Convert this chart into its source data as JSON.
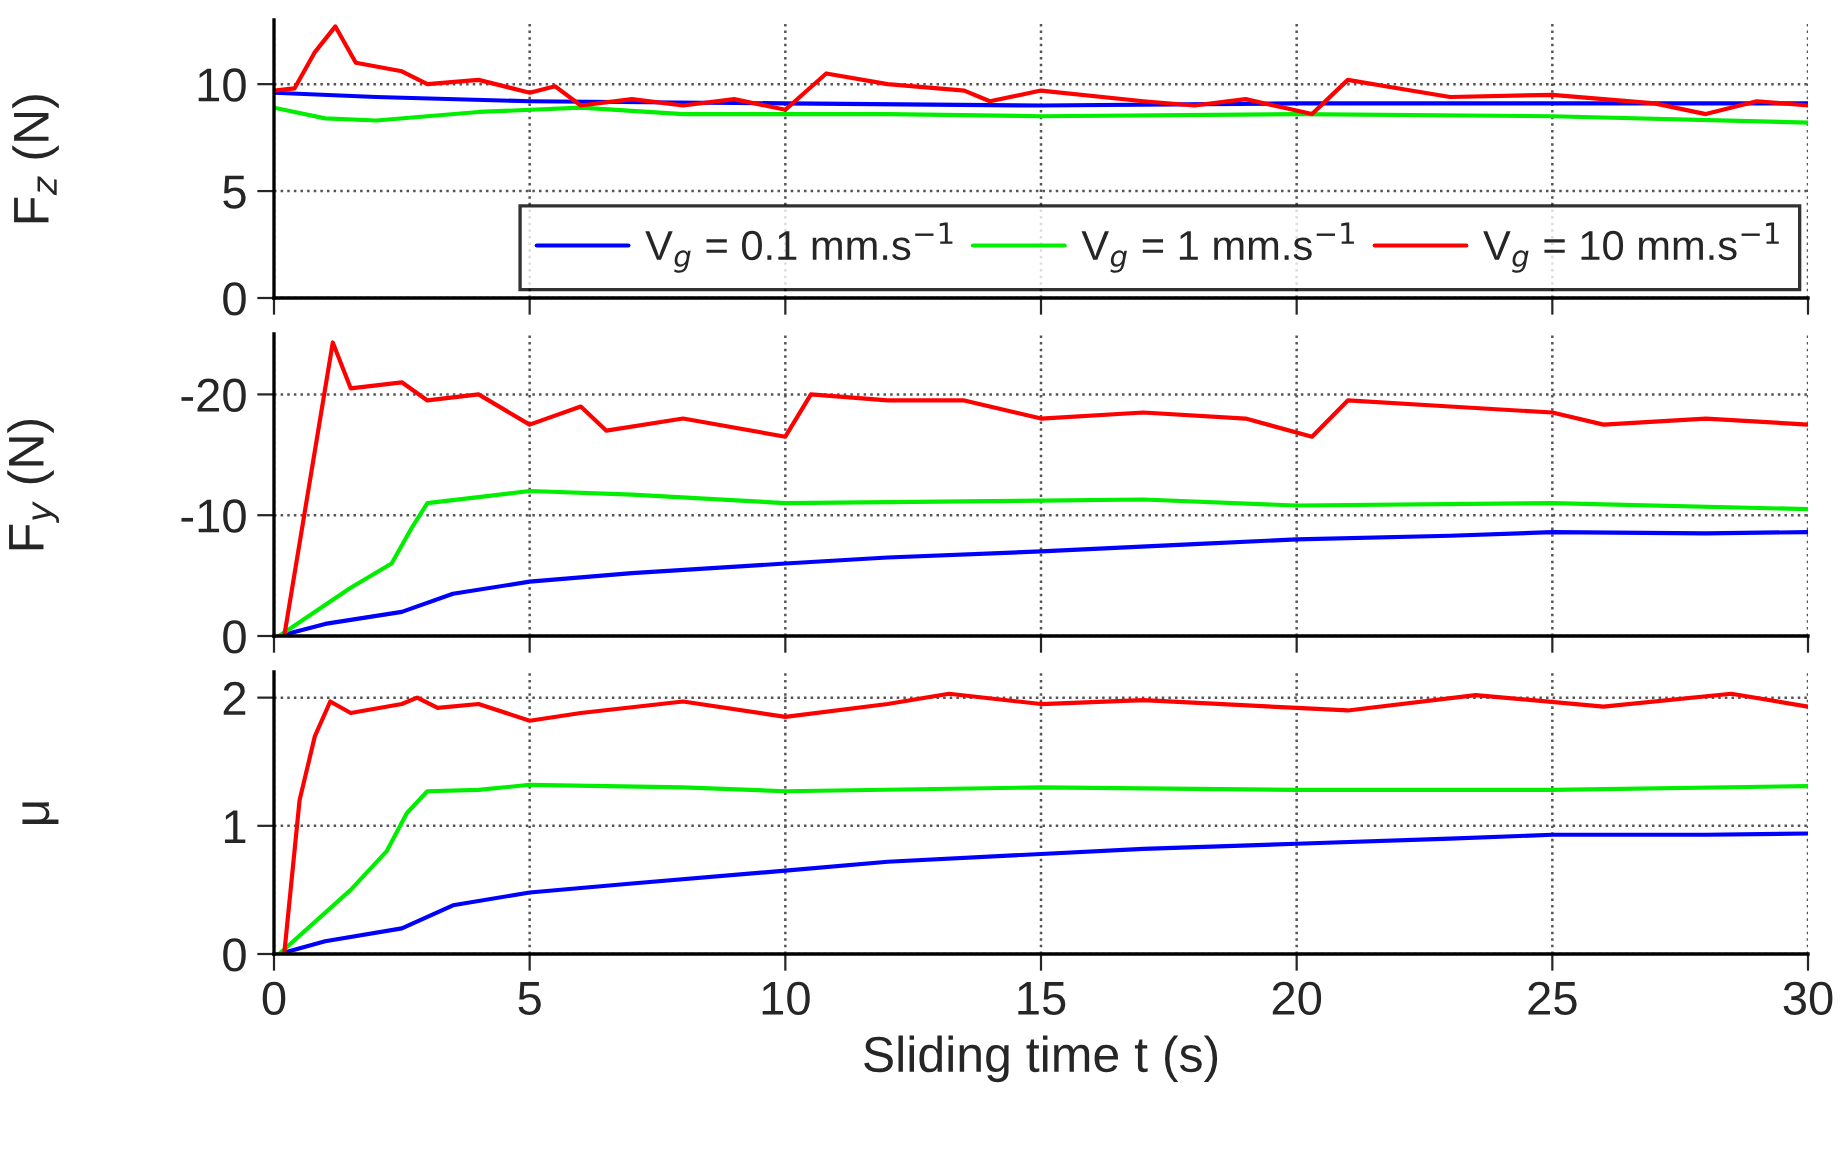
{
  "chart_data": [
    {
      "type": "line",
      "ylabel": "F$_{z}$ (N)",
      "xlim": [
        0,
        30
      ],
      "xticks": [
        0,
        5,
        10,
        15,
        20,
        25,
        30
      ],
      "ylim": [
        0,
        13
      ],
      "yticks": [
        0,
        5,
        10
      ],
      "grid": true,
      "legend": "bottom right",
      "tick_labels": "y",
      "line_style": "solid",
      "marker": "none",
      "series": [
        {
          "name": "V$_{g}$ = 0.1 mm.s$^{−1}$",
          "color": "#0000ff",
          "x": [
            0,
            2,
            5,
            10,
            15,
            20,
            25,
            30
          ],
          "values": [
            9.6,
            9.4,
            9.2,
            9.1,
            9.0,
            9.1,
            9.1,
            9.1
          ]
        },
        {
          "name": "V$_{g}$ = 1 mm.s$^{−1}$",
          "color": "#00ee00",
          "x": [
            0,
            1,
            2,
            4,
            6,
            8,
            12,
            15,
            20,
            25,
            30
          ],
          "values": [
            8.9,
            8.4,
            8.3,
            8.7,
            8.9,
            8.6,
            8.6,
            8.5,
            8.6,
            8.5,
            8.2
          ]
        },
        {
          "name": "V$_{g}$ = 10 mm.s$^{−1}$",
          "color": "#ff0000",
          "x": [
            0,
            0.4,
            0.8,
            1.2,
            1.6,
            2.5,
            3,
            4,
            5,
            5.5,
            6,
            7,
            8,
            9,
            10,
            10.8,
            12,
            13.5,
            14,
            15,
            17,
            18,
            19,
            20.3,
            21,
            22,
            23,
            25,
            26,
            27,
            28,
            29,
            30
          ],
          "values": [
            9.7,
            9.8,
            11.5,
            12.7,
            11.0,
            10.6,
            10.0,
            10.2,
            9.6,
            9.9,
            9.0,
            9.3,
            9.0,
            9.3,
            8.8,
            10.5,
            10.0,
            9.7,
            9.2,
            9.7,
            9.2,
            9.0,
            9.3,
            8.6,
            10.2,
            9.8,
            9.4,
            9.5,
            9.3,
            9.1,
            8.6,
            9.2,
            9.0
          ]
        }
      ]
    },
    {
      "type": "line",
      "ylabel": "F$_{y}$ (N)",
      "xlim": [
        0,
        30
      ],
      "xticks": [
        0,
        5,
        10,
        15,
        20,
        25,
        30
      ],
      "ylim": [
        0,
        -25
      ],
      "yticks": [
        0,
        {
          "value": -10,
          "label": "-10"
        },
        {
          "value": -20,
          "label": "-20"
        }
      ],
      "grid": true,
      "tick_labels": "y",
      "line_style": "solid",
      "marker": "none",
      "series": [
        {
          "color": "#0000ff",
          "x": [
            0.1,
            1,
            2.5,
            3.5,
            5,
            7,
            10,
            12,
            15,
            18,
            20,
            23,
            25,
            28,
            30
          ],
          "values": [
            0,
            -1,
            -2,
            -3.5,
            -4.5,
            -5.2,
            -6,
            -6.5,
            -7,
            -7.6,
            -8,
            -8.3,
            -8.6,
            -8.5,
            -8.6
          ]
        },
        {
          "color": "#00ee00",
          "x": [
            0.1,
            1.5,
            2.3,
            2.7,
            3,
            4,
            5,
            7,
            10,
            15,
            17,
            20,
            25,
            30
          ],
          "values": [
            0,
            -4,
            -6,
            -9,
            -11,
            -11.5,
            -12,
            -11.7,
            -11,
            -11.2,
            -11.3,
            -10.8,
            -11,
            -10.5
          ]
        },
        {
          "color": "#ff0000",
          "x": [
            0.2,
            1.15,
            1.5,
            2.5,
            3,
            4,
            5,
            6,
            6.5,
            8,
            10,
            10.5,
            12,
            13.5,
            15,
            17,
            19,
            20.3,
            21,
            23,
            25,
            26,
            28,
            30
          ],
          "values": [
            0,
            -24.3,
            -20.5,
            -21,
            -19.5,
            -20,
            -17.5,
            -19,
            -17,
            -18,
            -16.5,
            -20,
            -19.5,
            -19.5,
            -18,
            -18.5,
            -18,
            -16.5,
            -19.5,
            -19,
            -18.5,
            -17.5,
            -18,
            -17.5
          ]
        }
      ]
    },
    {
      "type": "line",
      "xlabel": "Sliding time t (s)",
      "ylabel": "μ",
      "xlim": [
        0,
        30
      ],
      "xticks": [
        0,
        5,
        10,
        15,
        20,
        25,
        30
      ],
      "ylim": [
        0,
        2.2
      ],
      "yticks": [
        0,
        1,
        2
      ],
      "grid": true,
      "line_style": "solid",
      "marker": "none",
      "series": [
        {
          "color": "#0000ff",
          "x": [
            0.1,
            1,
            2.5,
            3.5,
            5,
            7,
            10,
            12,
            15,
            17,
            20,
            23,
            25,
            28,
            30
          ],
          "values": [
            0,
            0.1,
            0.2,
            0.38,
            0.48,
            0.55,
            0.65,
            0.72,
            0.78,
            0.82,
            0.86,
            0.9,
            0.93,
            0.93,
            0.94
          ]
        },
        {
          "color": "#00ee00",
          "x": [
            0.1,
            1.5,
            2.2,
            2.6,
            3,
            4,
            5,
            8,
            10,
            15,
            20,
            25,
            30
          ],
          "values": [
            0,
            0.5,
            0.8,
            1.1,
            1.27,
            1.28,
            1.32,
            1.3,
            1.27,
            1.3,
            1.28,
            1.28,
            1.31
          ]
        },
        {
          "color": "#ff0000",
          "x": [
            0.2,
            0.5,
            0.8,
            1.1,
            1.5,
            2.5,
            2.8,
            3.2,
            4,
            5,
            6,
            8,
            10,
            12,
            13.2,
            15,
            17,
            20,
            21,
            23.5,
            26,
            28.5,
            30
          ],
          "values": [
            0,
            1.2,
            1.7,
            1.97,
            1.88,
            1.95,
            2.0,
            1.92,
            1.95,
            1.82,
            1.88,
            1.97,
            1.85,
            1.95,
            2.03,
            1.95,
            1.98,
            1.92,
            1.9,
            2.02,
            1.93,
            2.03,
            1.93
          ]
        }
      ]
    }
  ]
}
